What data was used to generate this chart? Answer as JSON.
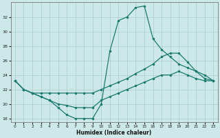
{
  "xlabel": "Humidex (Indice chaleur)",
  "bg_color": "#cce8e8",
  "line_color": "#1a7a6e",
  "grid_color": "#aacccc",
  "xlim": [
    -0.5,
    23.5
  ],
  "ylim": [
    17.5,
    34.0
  ],
  "yticks": [
    18,
    20,
    22,
    24,
    26,
    28,
    30,
    32
  ],
  "xticks": [
    0,
    1,
    2,
    3,
    4,
    5,
    6,
    7,
    8,
    9,
    10,
    11,
    12,
    13,
    14,
    15,
    16,
    17,
    18,
    19,
    20,
    21,
    22,
    23
  ],
  "curve1_x": [
    0,
    1,
    2,
    3,
    4,
    5,
    6,
    7,
    8,
    9,
    10,
    11,
    12,
    13,
    14,
    15,
    16,
    17,
    18,
    19,
    20,
    21,
    22,
    23
  ],
  "curve1_y": [
    23.2,
    22.0,
    21.5,
    21.0,
    20.5,
    19.5,
    18.5,
    18.0,
    18.0,
    18.0,
    20.0,
    27.3,
    31.5,
    32.0,
    33.3,
    33.5,
    29.0,
    27.5,
    26.5,
    25.5,
    25.0,
    24.5,
    24.0,
    23.2
  ],
  "curve2_x": [
    0,
    1,
    2,
    3,
    4,
    5,
    6,
    7,
    8,
    9,
    10,
    11,
    12,
    13,
    14,
    15,
    16,
    17,
    18,
    19,
    20,
    21,
    22,
    23
  ],
  "curve2_y": [
    23.2,
    22.0,
    21.5,
    21.5,
    21.5,
    21.5,
    21.5,
    21.5,
    21.5,
    21.5,
    22.0,
    22.5,
    23.0,
    23.5,
    24.2,
    24.8,
    25.5,
    26.5,
    27.0,
    27.0,
    25.8,
    24.5,
    23.5,
    23.2
  ],
  "curve3_x": [
    0,
    1,
    2,
    3,
    4,
    5,
    6,
    7,
    8,
    9,
    10,
    11,
    12,
    13,
    14,
    15,
    16,
    17,
    18,
    19,
    20,
    21,
    22,
    23
  ],
  "curve3_y": [
    23.2,
    22.0,
    21.5,
    21.0,
    20.5,
    20.0,
    19.8,
    19.5,
    19.5,
    19.5,
    20.5,
    21.0,
    21.5,
    22.0,
    22.5,
    23.0,
    23.5,
    24.0,
    24.0,
    24.5,
    24.0,
    23.5,
    23.2,
    23.2
  ]
}
